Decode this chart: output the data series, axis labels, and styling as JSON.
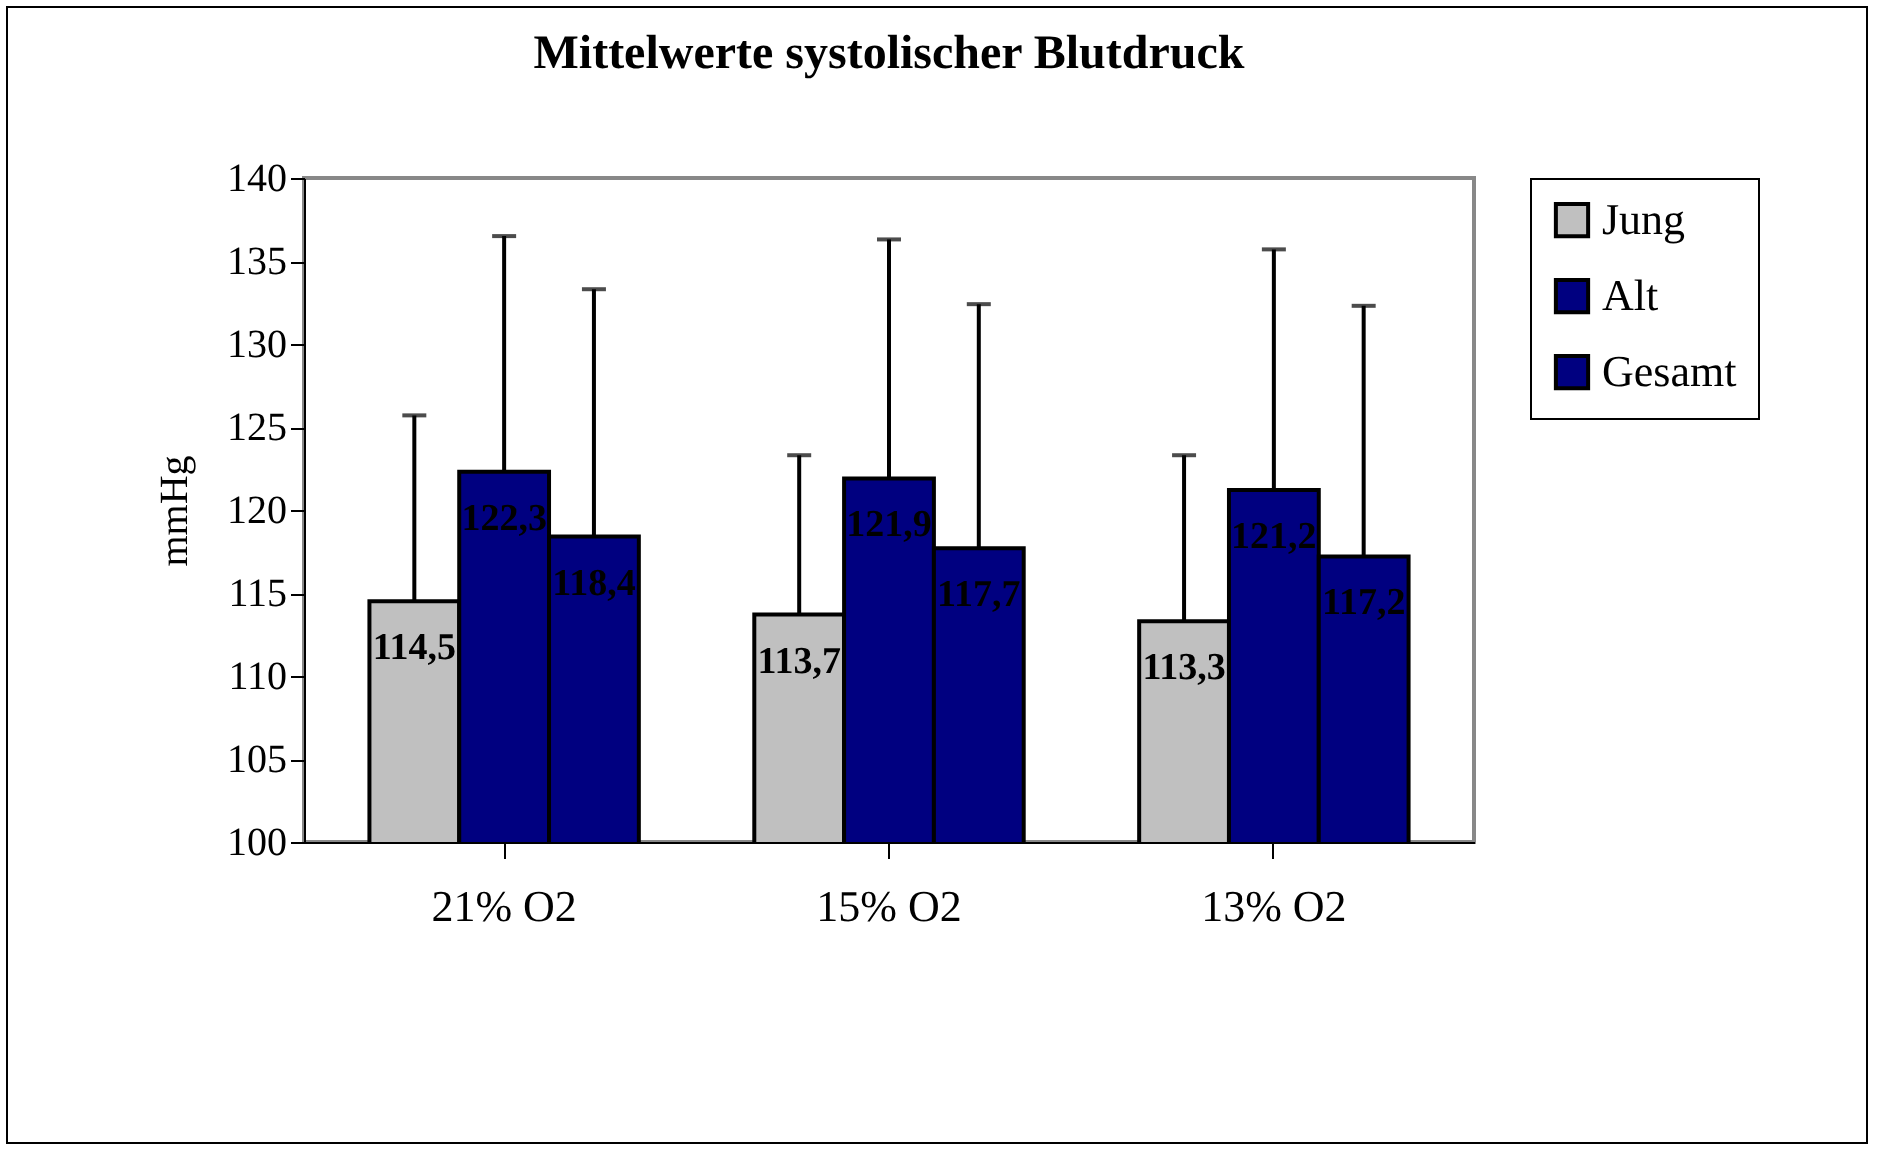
{
  "chart_data": {
    "type": "bar",
    "title": "Mittelwerte systolischer Blutdruck",
    "ylabel": "mmHg",
    "categories": [
      "21% O2",
      "15% O2",
      "13% O2"
    ],
    "series": [
      {
        "name": "Jung",
        "color": "#c0c0c0",
        "values": [
          114.5,
          113.7,
          113.3
        ],
        "value_labels": [
          "114,5",
          "113,7",
          "113,3"
        ],
        "errors": [
          [
            114.5,
            125.7
          ],
          [
            113.7,
            123.3
          ],
          [
            113.3,
            123.3
          ]
        ]
      },
      {
        "name": "Alt",
        "color": "#000080",
        "values": [
          122.3,
          121.9,
          121.2
        ],
        "value_labels": [
          "122,3",
          "121,9",
          "121,2"
        ],
        "errors": [
          [
            122.3,
            136.5
          ],
          [
            121.9,
            136.3
          ],
          [
            121.2,
            135.7
          ]
        ]
      },
      {
        "name": "Gesamt",
        "color": "#000080",
        "values": [
          118.4,
          117.7,
          117.2
        ],
        "value_labels": [
          "118,4",
          "117,7",
          "117,2"
        ],
        "errors": [
          [
            118.4,
            133.3
          ],
          [
            117.7,
            132.4
          ],
          [
            117.2,
            132.3
          ]
        ]
      }
    ],
    "ylim": [
      100,
      140
    ],
    "yticks": [
      100,
      105,
      110,
      115,
      120,
      125,
      130,
      135,
      140
    ],
    "grid": false,
    "legend": "right"
  }
}
